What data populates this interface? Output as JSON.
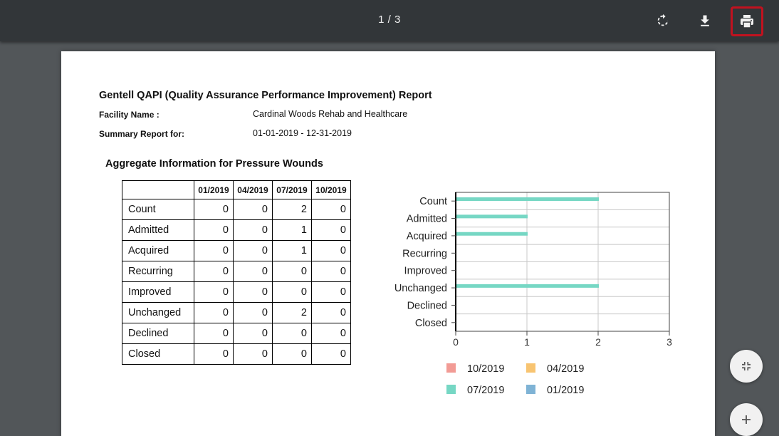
{
  "viewer": {
    "page_counter": "1 / 3",
    "buttons": [
      {
        "name": "rotate",
        "icon": "rotate-icon"
      },
      {
        "name": "download",
        "icon": "download-icon"
      },
      {
        "name": "print",
        "icon": "print-icon",
        "highlight_color": "#c1121f"
      }
    ],
    "side_buttons": [
      {
        "name": "fit-page",
        "icon": "shrink-icon"
      },
      {
        "name": "zoom-in",
        "icon": "plus-icon"
      }
    ]
  },
  "report": {
    "title": "Gentell QAPI (Quality Assurance Performance Improvement) Report",
    "facility_label": "Facility Name :",
    "facility_value": "Cardinal Woods Rehab and Healthcare",
    "summary_label": "Summary Report for:",
    "summary_value": "01-01-2019 - 12-31-2019",
    "section_title": "Aggregate Information for Pressure Wounds",
    "table": {
      "columns": [
        "01/2019",
        "04/2019",
        "07/2019",
        "10/2019"
      ],
      "rows": [
        {
          "label": "Count",
          "values": [
            "0",
            "0",
            "2",
            "0"
          ]
        },
        {
          "label": "Admitted",
          "values": [
            "0",
            "0",
            "1",
            "0"
          ]
        },
        {
          "label": "Acquired",
          "values": [
            "0",
            "0",
            "1",
            "0"
          ]
        },
        {
          "label": "Recurring",
          "values": [
            "0",
            "0",
            "0",
            "0"
          ]
        },
        {
          "label": "Improved",
          "values": [
            "0",
            "0",
            "0",
            "0"
          ]
        },
        {
          "label": "Unchanged",
          "values": [
            "0",
            "0",
            "2",
            "0"
          ]
        },
        {
          "label": "Declined",
          "values": [
            "0",
            "0",
            "0",
            "0"
          ]
        },
        {
          "label": "Closed",
          "values": [
            "0",
            "0",
            "0",
            "0"
          ]
        }
      ]
    }
  },
  "chart_data": {
    "type": "bar",
    "orientation": "horizontal",
    "categories": [
      "Count",
      "Admitted",
      "Acquired",
      "Recurring",
      "Improved",
      "Unchanged",
      "Declined",
      "Closed"
    ],
    "series": [
      {
        "name": "10/2019",
        "color": "#f29b95",
        "values": [
          0,
          0,
          0,
          0,
          0,
          0,
          0,
          0
        ]
      },
      {
        "name": "04/2019",
        "color": "#f8c471",
        "values": [
          0,
          0,
          0,
          0,
          0,
          0,
          0,
          0
        ]
      },
      {
        "name": "07/2019",
        "color": "#76d7c4",
        "values": [
          2,
          1,
          1,
          0,
          0,
          2,
          0,
          0
        ]
      },
      {
        "name": "01/2019",
        "color": "#7fb3d5",
        "values": [
          0,
          0,
          0,
          0,
          0,
          0,
          0,
          0
        ]
      }
    ],
    "xlim": [
      0,
      3
    ],
    "xticks": [
      "0",
      "1",
      "2",
      "3"
    ],
    "grid": true,
    "legend_position": "bottom",
    "legend_order": [
      "10/2019",
      "04/2019",
      "07/2019",
      "01/2019"
    ]
  }
}
